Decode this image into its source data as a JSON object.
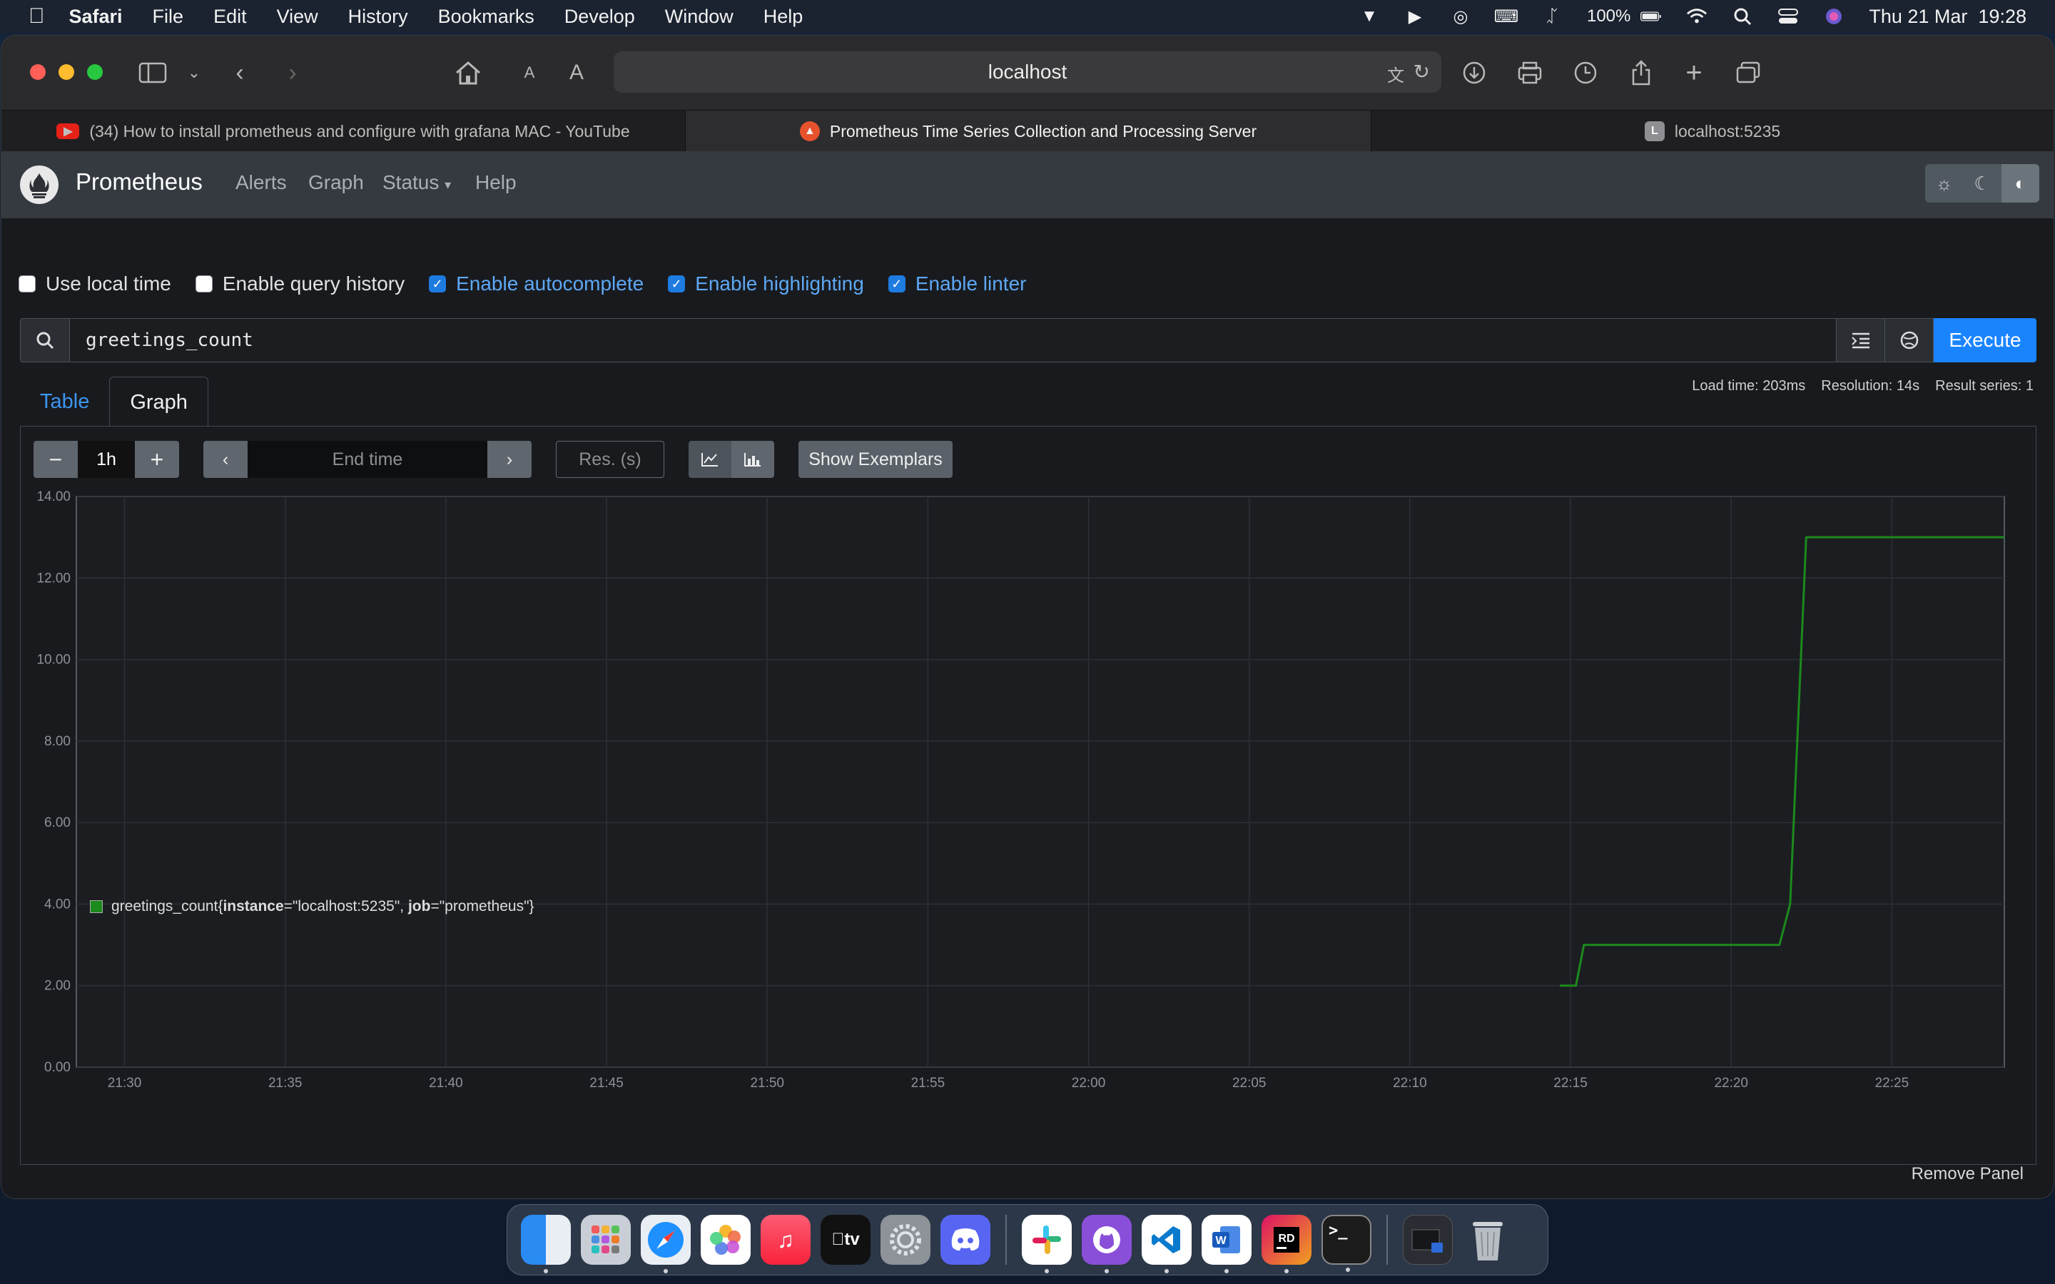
{
  "menubar": {
    "app": "Safari",
    "items": [
      "File",
      "Edit",
      "View",
      "History",
      "Bookmarks",
      "Develop",
      "Window",
      "Help"
    ],
    "battery": "100%",
    "clock": "Thu 21 Mar  19:28"
  },
  "browser": {
    "url": "localhost",
    "reader_small": "A",
    "reader_large": "A",
    "tabs": [
      {
        "label": "(34) How to install prometheus and configure with grafana MAC - YouTube",
        "active": false
      },
      {
        "label": "Prometheus Time Series Collection and Processing Server",
        "active": true
      },
      {
        "label": "localhost:5235",
        "active": false
      }
    ],
    "tab3_favicon_letter": "L"
  },
  "prometheus": {
    "brand": "Prometheus",
    "nav": [
      "Alerts",
      "Graph",
      "Status",
      "Help"
    ],
    "options": [
      {
        "label": "Use local time",
        "checked": false
      },
      {
        "label": "Enable query history",
        "checked": false
      },
      {
        "label": "Enable autocomplete",
        "checked": true
      },
      {
        "label": "Enable highlighting",
        "checked": true
      },
      {
        "label": "Enable linter",
        "checked": true
      }
    ],
    "expression": "greetings_count",
    "execute_label": "Execute",
    "tabs": [
      "Table",
      "Graph"
    ],
    "stats": {
      "load_time": "Load time: 203ms",
      "resolution": "Resolution: 14s",
      "result_series": "Result series: 1"
    },
    "controls": {
      "minus": "−",
      "range": "1h",
      "plus": "+",
      "end_time_placeholder": "End time",
      "res_placeholder": "Res. (s)",
      "show_exemplars": "Show Exemplars"
    },
    "legend": {
      "metric": "greetings_count{",
      "label1_key": "instance",
      "label1_val": "=\"localhost:5235\", ",
      "label2_key": "job",
      "label2_val": "=\"prometheus\"}"
    },
    "remove_panel": "Remove Panel"
  },
  "chart_data": {
    "type": "line",
    "title": "",
    "xlabel": "",
    "ylabel": "",
    "x_ticks": [
      "21:30",
      "21:35",
      "21:40",
      "21:45",
      "21:50",
      "21:55",
      "22:00",
      "22:05",
      "22:10",
      "22:15",
      "22:20",
      "22:25"
    ],
    "y_ticks": [
      "0.00",
      "2.00",
      "4.00",
      "6.00",
      "8.00",
      "10.00",
      "12.00",
      "14.00"
    ],
    "xlim_minutes": [
      "21:28:30",
      "22:28:30"
    ],
    "ylim": [
      0,
      14
    ],
    "grid": true,
    "series": [
      {
        "color": "#1c8a1c",
        "points": [
          [
            "22:14:40",
            2
          ],
          [
            "22:15:10",
            2
          ],
          [
            "22:15:25",
            3
          ],
          [
            "22:21:30",
            3
          ],
          [
            "22:21:40",
            3.5
          ],
          [
            "22:21:50",
            4
          ],
          [
            "22:22:00",
            7
          ],
          [
            "22:22:10",
            10
          ],
          [
            "22:22:20",
            13
          ],
          [
            "22:28:30",
            13
          ]
        ]
      }
    ]
  },
  "dock": [
    "finder-icon",
    "launchpad-icon",
    "safari-icon",
    "photos-icon",
    "music-icon",
    "tv-icon",
    "settings-icon",
    "discord-icon",
    "slack-icon",
    "github-icon",
    "vscode-icon",
    "word-icon",
    "rider-icon",
    "terminal-icon",
    "preview-icon",
    "trash-icon"
  ]
}
